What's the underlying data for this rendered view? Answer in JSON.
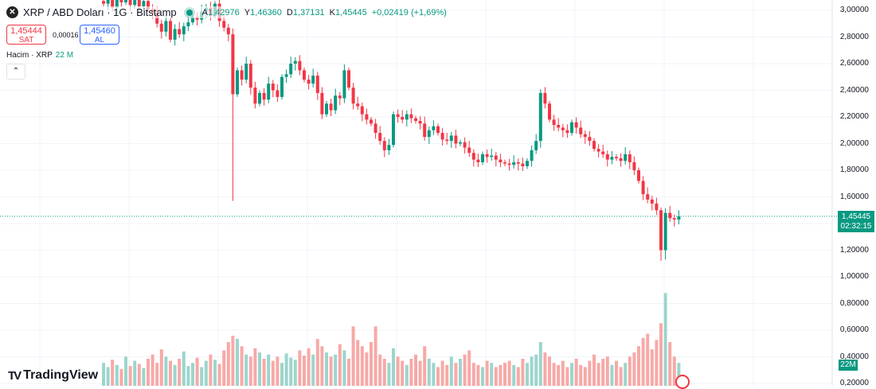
{
  "header": {
    "symbol_icon": "x-icon",
    "title": "XRP / ABD Doları · 1G · Bitstamp",
    "market_status_color": "#089981",
    "ohlc": {
      "o_label": "A",
      "o": "1,42976",
      "h_label": "Y",
      "h": "1,46360",
      "l_label": "D",
      "l": "1,37131",
      "c_label": "K",
      "c": "1,45445",
      "change": "+0,02419 (+1,69%)"
    }
  },
  "trade": {
    "sell_price": "1,45444",
    "sell_label": "SAT",
    "spread": "0,00016",
    "buy_price": "1,45460",
    "buy_label": "AL"
  },
  "volume_legend": {
    "label": "Hacim · XRP",
    "value": "22 M"
  },
  "collapse_icon": "chevron-up-icon",
  "price_axis": [
    "3,00000",
    "2,80000",
    "2,60000",
    "2,40000",
    "2,20000",
    "2,00000",
    "1,80000",
    "1,60000",
    "1,20000",
    "1,00000",
    "0,80000",
    "0,60000",
    "0,40000",
    "0,20000"
  ],
  "last_price": {
    "value": "1,45445",
    "countdown": "02:32:15"
  },
  "volume_tag": "22M",
  "logo": "TradingView",
  "colors": {
    "up": "#089981",
    "down": "#f23645",
    "up_volume": "#9cd5cc",
    "down_volume": "#f7a9a7"
  },
  "chart_data": {
    "type": "candlestick",
    "ylim": [
      0.2,
      3.0
    ],
    "grid": true,
    "close": [
      3.05,
      3.08,
      3.02,
      3.1,
      3.06,
      3.12,
      3.04,
      3.09,
      3.03,
      3.07,
      3.01,
      2.98,
      2.9,
      2.84,
      2.92,
      2.78,
      2.86,
      2.82,
      2.88,
      2.91,
      2.95,
      2.93,
      2.99,
      3.02,
      2.96,
      3.05,
      2.92,
      2.87,
      2.82,
      2.37,
      2.55,
      2.48,
      2.6,
      2.42,
      2.3,
      2.38,
      2.33,
      2.45,
      2.4,
      2.35,
      2.5,
      2.52,
      2.6,
      2.62,
      2.55,
      2.48,
      2.45,
      2.51,
      2.38,
      2.22,
      2.3,
      2.25,
      2.36,
      2.34,
      2.55,
      2.42,
      2.3,
      2.28,
      2.22,
      2.18,
      2.15,
      2.08,
      2.02,
      1.95,
      1.99,
      2.22,
      2.2,
      2.18,
      2.22,
      2.19,
      2.17,
      2.15,
      2.05,
      2.1,
      2.13,
      2.08,
      2.03,
      2.02,
      2.06,
      2.0,
      2.01,
      1.97,
      1.93,
      1.88,
      1.86,
      1.92,
      1.9,
      1.91,
      1.88,
      1.86,
      1.85,
      1.84,
      1.86,
      1.85,
      1.83,
      1.87,
      1.95,
      2.02,
      2.38,
      2.3,
      2.18,
      2.14,
      2.12,
      2.1,
      2.08,
      2.16,
      2.12,
      2.07,
      2.05,
      2.02,
      1.96,
      1.94,
      1.92,
      1.88,
      1.9,
      1.89,
      1.87,
      1.92,
      1.86,
      1.8,
      1.72,
      1.62,
      1.58,
      1.55,
      1.5,
      1.2,
      1.48,
      1.44,
      1.43,
      1.45445
    ],
    "notable_lows": {
      "29": 1.57,
      "125": 1.12,
      "126": 1.13
    },
    "volume_millions": [
      22,
      18,
      25,
      20,
      16,
      28,
      19,
      24,
      21,
      17,
      26,
      30,
      22,
      35,
      28,
      24,
      20,
      26,
      33,
      19,
      22,
      27,
      18,
      24,
      30,
      25,
      21,
      34,
      42,
      48,
      45,
      38,
      30,
      28,
      36,
      32,
      26,
      30,
      24,
      28,
      22,
      31,
      27,
      25,
      34,
      29,
      36,
      30,
      45,
      38,
      32,
      28,
      30,
      40,
      34,
      26,
      57,
      44,
      38,
      32,
      42,
      57,
      30,
      26,
      22,
      36,
      28,
      24,
      20,
      26,
      30,
      24,
      38,
      26,
      22,
      18,
      24,
      20,
      28,
      22,
      26,
      30,
      34,
      22,
      20,
      18,
      24,
      22,
      18,
      20,
      22,
      24,
      20,
      18,
      26,
      22,
      28,
      30,
      42,
      32,
      28,
      22,
      20,
      24,
      18,
      22,
      26,
      20,
      18,
      24,
      30,
      22,
      26,
      28,
      20,
      24,
      18,
      22,
      28,
      32,
      38,
      46,
      50,
      35,
      44,
      60,
      89,
      42,
      28,
      22
    ]
  }
}
